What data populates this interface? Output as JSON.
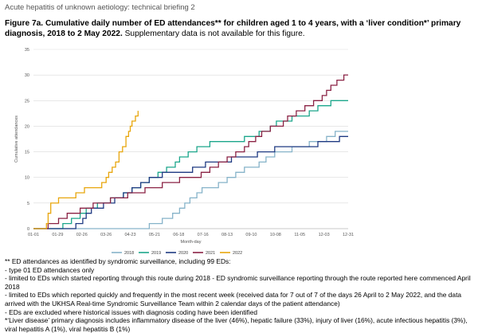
{
  "document": {
    "header": "Acute hepatitis of unknown aetiology: technical briefing 2",
    "figure_title_bold": "Figure 7a. Cumulative daily number of ED attendances** for children aged 1 to 4 years, with a ‘liver condition*’ primary diagnosis, 2018 to 2 May 2022.",
    "figure_title_normal": " Supplementary data is not available for this figure."
  },
  "notes": [
    "** ED attendances as identified by syndromic surveillance, including 99 EDs:",
    "- type 01 ED attendances only",
    "- limited to EDs which started reporting through this route during 2018 - ED syndromic surveillance reporting through the route reported here commenced April 2018",
    "- limited to EDs which reported quickly and frequently in the most recent week (received data for 7 out of 7 of the days 26 April to 2 May 2022, and the data arrived with the UKHSA Real-time Syndromic Surveillance Team within 2 calendar days of the patient attendance)",
    "- EDs are excluded where historical issues with diagnosis coding have been identified",
    "*‘Liver disease’ primary diagnosis includes inflammatory disease of the liver (46%), hepatic failure (33%), injury of liver (16%), acute infectious hepatitis (3%), viral hepatitis A (1%), viral hepatitis B (1%)"
  ],
  "chart_data": {
    "type": "line",
    "xlabel": "Month-day",
    "ylabel": "Cumulative attendances",
    "ylim": [
      0,
      35
    ],
    "yticks": [
      0,
      5,
      10,
      15,
      20,
      25,
      30,
      35
    ],
    "xlim": [
      1,
      365
    ],
    "x_tick_labels": [
      "01-01",
      "01-29",
      "02-26",
      "03-26",
      "04-23",
      "05-21",
      "06-18",
      "07-16",
      "08-13",
      "09-10",
      "10-08",
      "11-05",
      "12-03",
      "12-31"
    ],
    "x_tick_days": [
      1,
      29,
      57,
      85,
      113,
      141,
      169,
      197,
      225,
      253,
      281,
      309,
      337,
      365
    ],
    "grid": "horizontal",
    "legend_position": "bottom",
    "series": [
      {
        "name": "2018",
        "color": "#86b3c9",
        "x": [
          1,
          120,
          135,
          150,
          162,
          170,
          176,
          182,
          190,
          196,
          205,
          215,
          225,
          235,
          245,
          255,
          262,
          270,
          280,
          290,
          300,
          310,
          320,
          330,
          340,
          350,
          365
        ],
        "y": [
          0,
          0,
          1,
          2,
          3,
          4,
          5,
          6,
          7,
          8,
          8,
          9,
          10,
          11,
          12,
          12,
          13,
          14,
          15,
          15,
          16,
          16,
          17,
          17,
          18,
          19,
          19
        ]
      },
      {
        "name": "2019",
        "color": "#1ba68b",
        "x": [
          1,
          25,
          35,
          45,
          55,
          62,
          75,
          90,
          105,
          115,
          125,
          135,
          145,
          155,
          160,
          165,
          170,
          180,
          190,
          205,
          225,
          245,
          262,
          270,
          275,
          282,
          290,
          300,
          310,
          320,
          330,
          340,
          345,
          355,
          365
        ],
        "y": [
          0,
          0,
          1,
          2,
          3,
          4,
          5,
          6,
          7,
          8,
          9,
          10,
          11,
          12,
          12,
          13,
          14,
          15,
          16,
          17,
          17,
          18,
          19,
          19,
          20,
          21,
          21,
          22,
          22,
          23,
          24,
          24,
          25,
          25,
          25
        ]
      },
      {
        "name": "2020",
        "color": "#1f3a82",
        "x": [
          1,
          5,
          50,
          58,
          62,
          68,
          75,
          82,
          95,
          105,
          115,
          125,
          135,
          150,
          170,
          185,
          200,
          215,
          230,
          245,
          260,
          280,
          295,
          315,
          330,
          345,
          355,
          365
        ],
        "y": [
          0,
          0,
          1,
          2,
          3,
          4,
          4,
          5,
          6,
          7,
          8,
          9,
          10,
          11,
          11,
          12,
          13,
          13,
          14,
          14,
          15,
          16,
          16,
          16,
          17,
          17,
          18,
          18
        ]
      },
      {
        "name": "2021",
        "color": "#8a2244",
        "x": [
          1,
          10,
          18,
          30,
          40,
          55,
          70,
          90,
          110,
          130,
          150,
          170,
          185,
          195,
          205,
          215,
          225,
          235,
          245,
          250,
          258,
          265,
          275,
          285,
          290,
          295,
          305,
          315,
          325,
          335,
          340,
          345,
          348,
          352,
          355,
          360,
          365
        ],
        "y": [
          0,
          0,
          1,
          2,
          3,
          4,
          5,
          6,
          7,
          8,
          9,
          10,
          10,
          11,
          12,
          13,
          14,
          15,
          16,
          17,
          18,
          19,
          20,
          20,
          21,
          22,
          23,
          24,
          25,
          26,
          27,
          28,
          28,
          29,
          29,
          30,
          30
        ]
      },
      {
        "name": "2022",
        "color": "#e8a60c",
        "x": [
          1,
          12,
          16,
          18,
          21,
          26,
          30,
          40,
          50,
          60,
          70,
          80,
          85,
          88,
          92,
          96,
          100,
          104,
          108,
          111,
          113,
          115,
          117,
          119,
          121,
          122
        ],
        "y": [
          0,
          0,
          1,
          3,
          5,
          5,
          6,
          6,
          7,
          8,
          8,
          9,
          10,
          11,
          12,
          13,
          15,
          16,
          18,
          19,
          20,
          21,
          21,
          22,
          22,
          23
        ]
      }
    ]
  }
}
